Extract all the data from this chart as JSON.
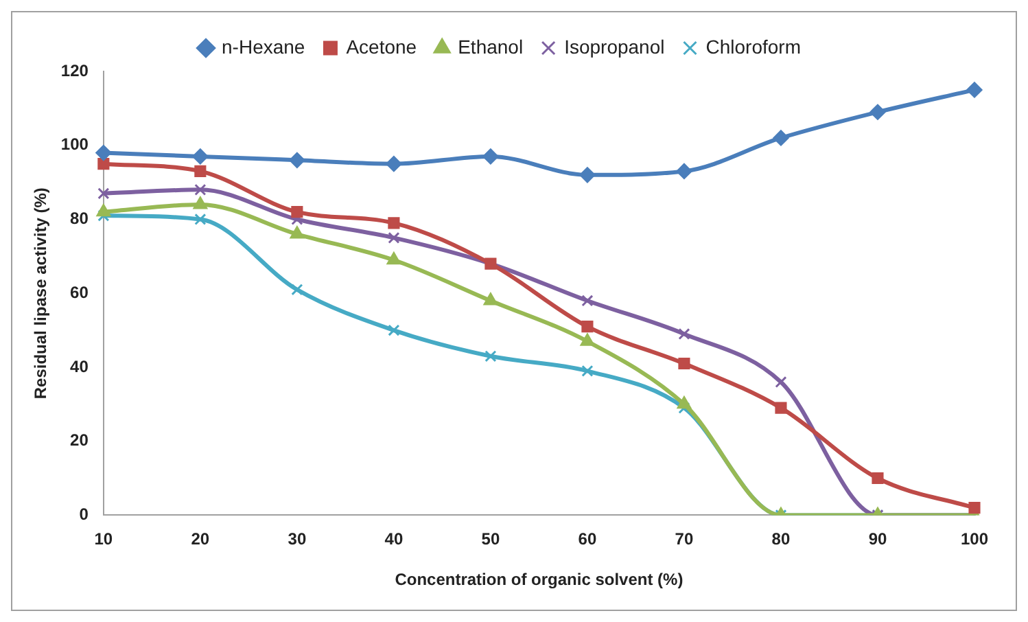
{
  "chart_data": {
    "type": "line",
    "xlabel": "Concentration of organic solvent (%)",
    "ylabel": "Residual lipase activity (%)",
    "categories": [
      "10",
      "20",
      "30",
      "40",
      "50",
      "60",
      "70",
      "80",
      "90",
      "100"
    ],
    "ylim": [
      0,
      120
    ],
    "yticks": [
      0,
      20,
      40,
      60,
      80,
      100,
      120
    ],
    "grid": false,
    "legend": "top",
    "series": [
      {
        "name": "n-Hexane",
        "color": "#4a7ebb",
        "marker": "diamond",
        "values": [
          98,
          97,
          96,
          95,
          97,
          92,
          93,
          102,
          109,
          115
        ]
      },
      {
        "name": "Acetone",
        "color": "#be4b48",
        "marker": "square",
        "values": [
          95,
          93,
          82,
          79,
          68,
          51,
          41,
          29,
          10,
          2
        ]
      },
      {
        "name": "Ethanol",
        "color": "#98b954",
        "marker": "triangle",
        "values": [
          82,
          84,
          76,
          69,
          58,
          47,
          30,
          0,
          0,
          0
        ]
      },
      {
        "name": "Isopropanol",
        "color": "#7d60a0",
        "marker": "cross",
        "values": [
          87,
          88,
          80,
          75,
          68,
          58,
          49,
          36,
          0,
          0
        ]
      },
      {
        "name": "Chloroform",
        "color": "#46aac5",
        "marker": "cross",
        "values": [
          81,
          80,
          61,
          50,
          43,
          39,
          29,
          0,
          0,
          0
        ]
      }
    ]
  }
}
